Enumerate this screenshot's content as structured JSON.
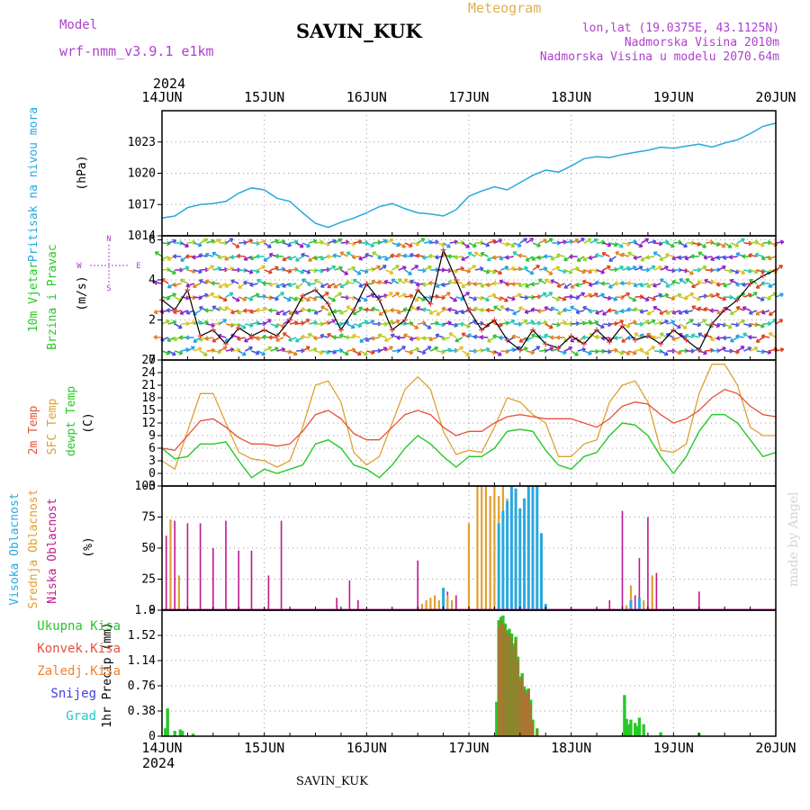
{
  "header": {
    "model_label": "Model",
    "model_name": "wrf-nmm_v3.9.1  e1km",
    "station": "SAVIN_KUK",
    "title": "Meteogram",
    "lonlat": "lon,lat (19.0375E, 43.1125N)",
    "altitude": "Nadmorska Visina 2010m",
    "model_altitude": "Nadmorska Visina u modelu 2070.64m",
    "year": "2024",
    "footer_station": "SAVIN_KUK",
    "credit": "made by Angel"
  },
  "colors": {
    "pressure": "#29a8e0",
    "t2m": "#e8503a",
    "tsfc": "#e0a030",
    "dewpt": "#28c828",
    "cloud_high": "#29a8e0",
    "cloud_mid": "#e0a030",
    "cloud_low": "#c01890",
    "precip_total": "#28c828",
    "precip_conv": "#e8503a",
    "precip_frozen": "#f08030",
    "snow": "#4040e0",
    "hail": "#20c8c8",
    "model_text": "#b040d0"
  },
  "chart_data": [
    {
      "type": "line",
      "panel": "pressure",
      "title": "",
      "ylabel_lines": [
        "Pritisak na nivou mora",
        "(hPa)"
      ],
      "ylim": [
        1014,
        1026
      ],
      "yticks": [
        1014,
        1017,
        1020,
        1023
      ],
      "x_unit": "hours since 2024-06-14 00:00 UTC",
      "x": [
        0,
        3,
        6,
        9,
        12,
        15,
        18,
        21,
        24,
        27,
        30,
        33,
        36,
        39,
        42,
        45,
        48,
        51,
        54,
        57,
        60,
        63,
        66,
        69,
        72,
        75,
        78,
        81,
        84,
        87,
        90,
        93,
        96,
        99,
        102,
        105,
        108,
        111,
        114,
        117,
        120,
        123,
        126,
        129,
        132,
        135,
        138,
        141,
        144
      ],
      "series": [
        {
          "values": [
            1015.7,
            1015.9,
            1016.7,
            1017.0,
            1017.1,
            1017.3,
            1018.1,
            1018.6,
            1018.4,
            1017.6,
            1017.3,
            1016.2,
            1015.2,
            1014.8,
            1015.3,
            1015.7,
            1016.2,
            1016.8,
            1017.1,
            1016.6,
            1016.2,
            1016.1,
            1015.9,
            1016.5,
            1017.8,
            1018.3,
            1018.7,
            1018.4,
            1019.1,
            1019.8,
            1020.3,
            1020.1,
            1020.7,
            1021.4,
            1021.6,
            1021.5,
            1021.8,
            1022.0,
            1022.2,
            1022.5,
            1022.4,
            1022.6,
            1022.8,
            1022.5,
            1022.9,
            1023.2,
            1023.8,
            1024.5,
            1024.8
          ]
        }
      ]
    },
    {
      "type": "line",
      "panel": "wind",
      "title": "",
      "ylabel_lines": [
        "10m Vjetar",
        "Brzina i Pravac",
        "(m/s)"
      ],
      "compass": [
        "N",
        "W",
        "E",
        "S"
      ],
      "ylim": [
        0,
        6.2
      ],
      "yticks": [
        0,
        2,
        4,
        6
      ],
      "x_unit": "hours since 2024-06-14 00:00 UTC",
      "x": [
        0,
        3,
        6,
        9,
        12,
        15,
        18,
        21,
        24,
        27,
        30,
        33,
        36,
        39,
        42,
        45,
        48,
        51,
        54,
        57,
        60,
        63,
        66,
        69,
        72,
        75,
        78,
        81,
        84,
        87,
        90,
        93,
        96,
        99,
        102,
        105,
        108,
        111,
        114,
        117,
        120,
        123,
        126,
        129,
        132,
        135,
        138,
        141,
        144
      ],
      "series": [
        {
          "name": "wind speed",
          "values": [
            3.0,
            2.5,
            3.5,
            1.2,
            1.5,
            0.8,
            1.6,
            1.2,
            1.5,
            1.2,
            2.0,
            3.2,
            3.5,
            2.8,
            1.5,
            2.5,
            3.8,
            3.0,
            1.5,
            2.0,
            3.5,
            2.8,
            5.5,
            4.0,
            2.5,
            1.5,
            2.0,
            1.0,
            0.5,
            1.5,
            0.8,
            0.6,
            1.2,
            0.8,
            1.5,
            0.9,
            1.7,
            1.0,
            1.2,
            0.8,
            1.5,
            1.0,
            0.5,
            1.8,
            2.5,
            3.0,
            3.8,
            4.2,
            4.5
          ]
        }
      ],
      "arrow_colors": [
        "#9020c8",
        "#4a50e0",
        "#20a0e0",
        "#20c8b0",
        "#30c030",
        "#a0d020",
        "#e0c020",
        "#e08020",
        "#e04020"
      ]
    },
    {
      "type": "line",
      "panel": "temperature",
      "title": "",
      "ylabel_lines": [
        "2m Temp",
        "SFC Temp",
        "dewpt Temp",
        "(C)"
      ],
      "ylim": [
        -3,
        27
      ],
      "yticks": [
        -3,
        0,
        3,
        6,
        9,
        12,
        15,
        18,
        21,
        24,
        27
      ],
      "x_unit": "hours since 2024-06-14 00:00 UTC",
      "x": [
        0,
        3,
        6,
        9,
        12,
        15,
        18,
        21,
        24,
        27,
        30,
        33,
        36,
        39,
        42,
        45,
        48,
        51,
        54,
        57,
        60,
        63,
        66,
        69,
        72,
        75,
        78,
        81,
        84,
        87,
        90,
        93,
        96,
        99,
        102,
        105,
        108,
        111,
        114,
        117,
        120,
        123,
        126,
        129,
        132,
        135,
        138,
        141,
        144
      ],
      "series": [
        {
          "name": "2m Temp",
          "values": [
            6,
            5.5,
            9,
            12.5,
            13,
            11,
            8.5,
            7,
            7,
            6.5,
            7,
            10,
            14,
            15,
            13,
            9.5,
            8,
            8,
            11,
            14,
            15,
            14,
            11,
            9,
            10,
            10,
            12,
            13.5,
            14,
            13.5,
            13,
            13,
            13,
            12,
            11,
            13,
            16,
            17,
            16.5,
            14,
            12,
            13,
            15,
            18,
            20,
            19,
            16,
            14,
            13.5
          ]
        },
        {
          "name": "SFC Temp",
          "values": [
            3,
            1,
            10,
            19,
            19,
            12,
            5,
            3.5,
            3,
            1.5,
            3,
            11,
            21,
            22,
            17,
            5,
            2,
            4,
            12,
            20,
            23,
            20,
            10,
            4.5,
            5.5,
            5,
            11,
            18,
            17,
            14,
            12,
            4,
            4,
            7,
            8,
            17,
            21,
            22,
            17,
            5.5,
            5,
            7,
            19,
            26,
            26,
            21,
            11,
            9,
            9
          ]
        },
        {
          "name": "dewpt Temp",
          "values": [
            6,
            3.5,
            4,
            7,
            7,
            7.5,
            3,
            -1,
            1,
            0,
            1,
            2,
            7,
            8,
            6,
            2,
            1,
            -1,
            2,
            6,
            9,
            7,
            4,
            1.5,
            4,
            4,
            6,
            10,
            10.5,
            10,
            5.5,
            2,
            1,
            4,
            5,
            9,
            12,
            11.5,
            9,
            4,
            0,
            4,
            10,
            14,
            14,
            12,
            8,
            4,
            5
          ]
        }
      ]
    },
    {
      "type": "bar",
      "panel": "cloud",
      "title": "",
      "ylabel_lines": [
        "Visoka Oblacnost",
        "Srednja Oblacnost",
        "Niska Oblacnost",
        "(%)"
      ],
      "ylim": [
        0,
        100
      ],
      "yticks": [
        0,
        25,
        50,
        75,
        100
      ],
      "x_unit": "hours since 2024-06-14 00:00 UTC",
      "series": [
        {
          "name": "Niska Oblacnost",
          "x": [
            1,
            3,
            6,
            9,
            12,
            15,
            18,
            21,
            25,
            28,
            41,
            44,
            46,
            60,
            66,
            67,
            69,
            72,
            105,
            108,
            111,
            112,
            114,
            116,
            126
          ],
          "values": [
            60,
            72,
            70,
            70,
            50,
            72,
            48,
            48,
            28,
            72,
            10,
            24,
            8,
            40,
            18,
            15,
            12,
            48,
            8,
            80,
            12,
            42,
            75,
            30,
            15
          ]
        },
        {
          "name": "Srednja Oblacnost",
          "x": [
            2,
            4,
            61,
            62,
            63,
            64,
            65,
            67,
            68,
            72,
            74,
            75,
            76,
            77,
            78,
            79,
            80,
            81,
            82,
            83,
            84,
            85,
            86,
            87,
            88,
            89,
            109,
            110,
            113,
            115
          ],
          "values": [
            73,
            28,
            5,
            8,
            10,
            12,
            8,
            12,
            8,
            70,
            100,
            100,
            100,
            92,
            100,
            92,
            100,
            90,
            95,
            78,
            82,
            75,
            100,
            85,
            65,
            28,
            4,
            20,
            8,
            28
          ]
        },
        {
          "name": "Visoka Oblacnost",
          "x": [
            66,
            79,
            80,
            81,
            82,
            83,
            84,
            85,
            86,
            87,
            88,
            89,
            90,
            110,
            112
          ],
          "values": [
            18,
            70,
            80,
            88,
            100,
            98,
            82,
            90,
            100,
            100,
            100,
            62,
            5,
            8,
            10
          ]
        }
      ]
    },
    {
      "type": "bar",
      "panel": "precip",
      "title": "",
      "ylabel_lines": [
        "1hr Precip (mm)"
      ],
      "legend": [
        "Ukupna Kisa",
        "Konvek.Kisa",
        "Zaledj.Kisa",
        "Snijeg",
        "Grad"
      ],
      "ylim": [
        0,
        1.9
      ],
      "yticks": [
        0,
        0.38,
        0.76,
        1.14,
        1.52,
        1.9
      ],
      "x_unit": "hours since 2024-06-14 00:00 UTC",
      "series": [
        {
          "name": "Ukupna Kisa",
          "x": [
            0.8,
            1.3,
            3,
            4.3,
            4.8,
            7.3,
            78.5,
            79,
            79.5,
            80,
            80.5,
            81,
            81.5,
            82,
            82.5,
            83,
            83.5,
            84,
            84.5,
            85,
            85.5,
            86,
            86.5,
            87,
            88,
            108.5,
            109,
            109.5,
            110,
            111,
            111.5,
            112,
            113,
            117,
            126
          ],
          "values": [
            0.12,
            0.42,
            0.08,
            0.1,
            0.08,
            0.04,
            0.52,
            1.75,
            1.8,
            1.82,
            1.7,
            1.6,
            1.62,
            1.55,
            1.4,
            1.5,
            1.2,
            0.9,
            0.95,
            0.75,
            0.7,
            0.72,
            0.55,
            0.25,
            0.12,
            0.62,
            0.26,
            0.18,
            0.25,
            0.2,
            0.15,
            0.28,
            0.18,
            0.06,
            0.05
          ]
        },
        {
          "name": "Konvek.Kisa",
          "x": [
            79,
            79.5,
            80,
            80.5,
            81,
            81.5,
            82,
            82.5,
            83,
            83.5,
            84,
            84.5,
            85,
            85.5,
            86,
            86.5,
            87,
            88
          ],
          "values": [
            1.65,
            1.75,
            1.7,
            1.65,
            1.55,
            1.55,
            1.5,
            1.35,
            1.45,
            1.15,
            0.85,
            0.9,
            0.7,
            0.65,
            0.7,
            0.5,
            0.22,
            0.1
          ]
        }
      ]
    }
  ],
  "x_ticks": [
    "14JUN",
    "15JUN",
    "16JUN",
    "17JUN",
    "18JUN",
    "19JUN",
    "20JUN"
  ]
}
